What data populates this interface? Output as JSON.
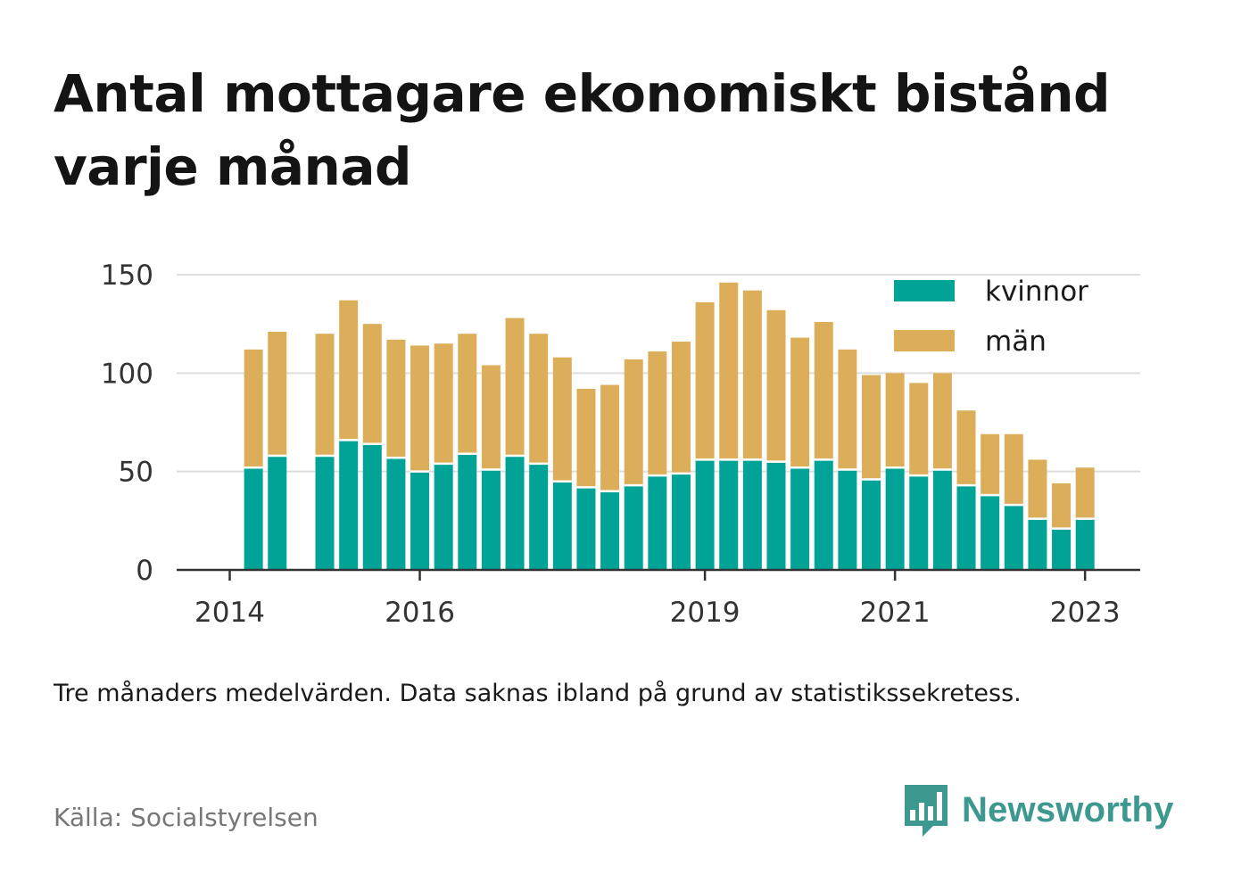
{
  "header": {
    "title": "Antal mottagare ekonomiskt bistånd varje månad"
  },
  "footer": {
    "note": "Tre månaders medelvärden. Data saknas ibland på grund av statistikssekretess.",
    "source": "Källa: Socialstyrelsen",
    "brand": "Newsworthy",
    "brand_icon": "bar-chart-speech-bubble-icon"
  },
  "chart_data": {
    "type": "bar",
    "stacked": true,
    "title": "Antal mottagare ekonomiskt bistånd varje månad",
    "xlabel": "",
    "ylabel": "",
    "ylim": [
      0,
      150
    ],
    "y_ticks": [
      0,
      50,
      100,
      150
    ],
    "x_ticks": [
      {
        "label": "2014",
        "at": 0
      },
      {
        "label": "2016",
        "at": 8
      },
      {
        "label": "2019",
        "at": 20
      },
      {
        "label": "2021",
        "at": 28
      },
      {
        "label": "2023",
        "at": 36
      }
    ],
    "grid": true,
    "legend": "top-right",
    "colors": {
      "kvinnor": "#00a396",
      "män": "#dcae5a"
    },
    "categories": [
      "2014-01",
      "2014-04",
      "2014-07",
      "2014-10",
      "2015-01",
      "2015-04",
      "2015-07",
      "2015-10",
      "2016-01",
      "2016-04",
      "2016-07",
      "2016-10",
      "2017-01",
      "2017-04",
      "2017-07",
      "2017-10",
      "2018-01",
      "2018-04",
      "2018-07",
      "2018-10",
      "2019-01",
      "2019-04",
      "2019-07",
      "2019-10",
      "2020-01",
      "2020-04",
      "2020-07",
      "2020-10",
      "2021-01",
      "2021-04",
      "2021-07",
      "2021-10",
      "2022-01",
      "2022-04",
      "2022-07",
      "2022-10",
      "2023-01",
      "2023-04"
    ],
    "series": [
      {
        "name": "kvinnor",
        "values": [
          null,
          52,
          58,
          null,
          58,
          66,
          64,
          57,
          50,
          54,
          59,
          51,
          58,
          54,
          45,
          42,
          40,
          43,
          48,
          49,
          56,
          56,
          56,
          55,
          52,
          56,
          51,
          46,
          52,
          48,
          51,
          43,
          38,
          33,
          26,
          21,
          26,
          null
        ]
      },
      {
        "name": "män",
        "values": [
          null,
          60,
          63,
          null,
          62,
          71,
          61,
          60,
          64,
          61,
          61,
          53,
          70,
          66,
          63,
          50,
          54,
          64,
          63,
          67,
          80,
          90,
          86,
          77,
          66,
          70,
          61,
          53,
          48,
          47,
          49,
          38,
          31,
          36,
          30,
          23,
          26,
          null
        ]
      }
    ]
  }
}
